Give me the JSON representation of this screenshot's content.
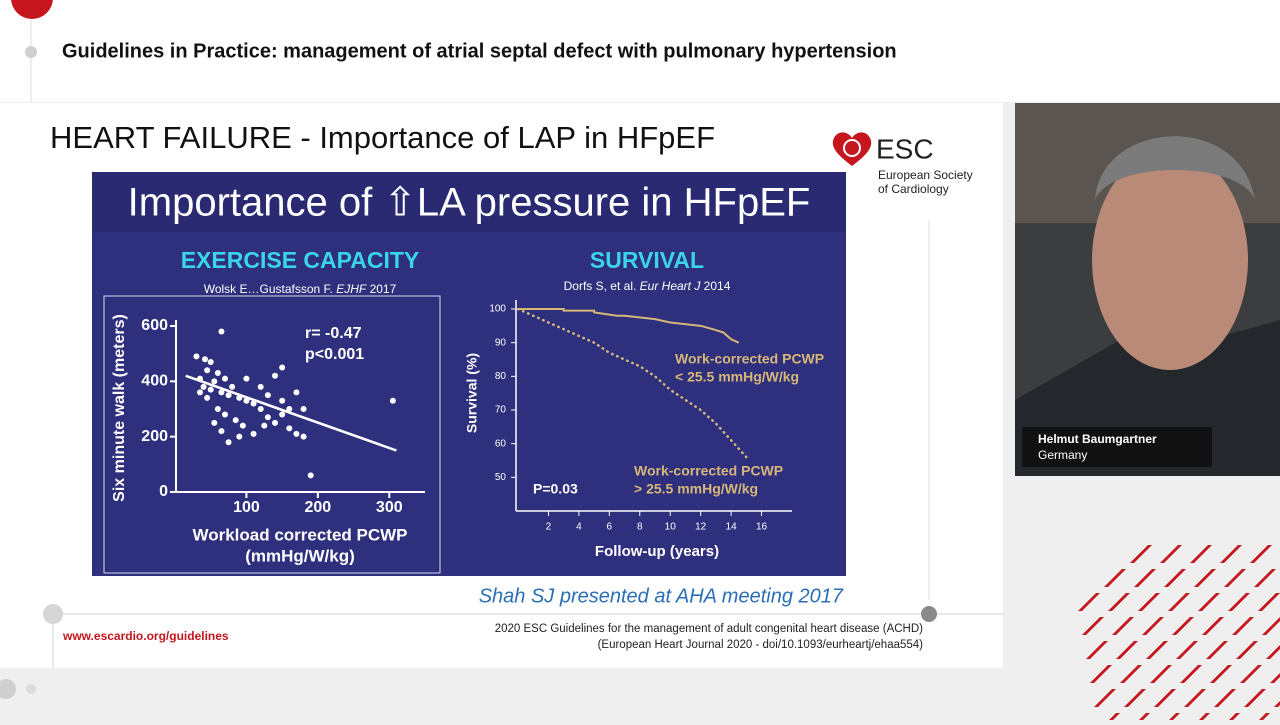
{
  "header": {
    "title": "Guidelines in Practice: management of atrial septal defect with pulmonary hypertension"
  },
  "slide": {
    "title": "HEART FAILURE - Importance of LAP in HFpEF",
    "logo": {
      "name": "ESC",
      "line1": "European Society",
      "line2": "of Cardiology"
    },
    "panel_title": "Importance of ⇧LA pressure in HFpEF",
    "exercise": {
      "heading": "EXERCISE CAPACITY",
      "citation_authors": "Wolsk E…Gustafsson F. ",
      "citation_journal": "EJHF",
      "citation_year": " 2017",
      "ylabel": "Six minute walk (meters)",
      "xlabel_line1": "Workload corrected PCWP",
      "xlabel_line2": "(mmHg/W/kg)",
      "xlim": [
        0,
        350
      ],
      "ylim": [
        0,
        600
      ],
      "xticks": [
        100,
        200,
        300
      ],
      "yticks": [
        0,
        200,
        400,
        600
      ],
      "r": "r= -0.47",
      "p": "p<0.001",
      "points": [
        [
          42,
          480
        ],
        [
          50,
          470
        ],
        [
          30,
          490
        ],
        [
          45,
          440
        ],
        [
          60,
          430
        ],
        [
          35,
          410
        ],
        [
          55,
          400
        ],
        [
          70,
          410
        ],
        [
          80,
          380
        ],
        [
          40,
          380
        ],
        [
          50,
          370
        ],
        [
          65,
          360
        ],
        [
          75,
          350
        ],
        [
          90,
          340
        ],
        [
          100,
          330
        ],
        [
          110,
          320
        ],
        [
          60,
          300
        ],
        [
          70,
          280
        ],
        [
          85,
          260
        ],
        [
          95,
          240
        ],
        [
          120,
          300
        ],
        [
          130,
          270
        ],
        [
          140,
          250
        ],
        [
          150,
          280
        ],
        [
          160,
          230
        ],
        [
          170,
          210
        ],
        [
          180,
          200
        ],
        [
          55,
          250
        ],
        [
          65,
          220
        ],
        [
          75,
          180
        ],
        [
          90,
          200
        ],
        [
          110,
          210
        ],
        [
          130,
          350
        ],
        [
          150,
          330
        ],
        [
          170,
          360
        ],
        [
          120,
          380
        ],
        [
          100,
          410
        ],
        [
          180,
          300
        ],
        [
          190,
          60
        ],
        [
          305,
          330
        ],
        [
          65,
          580
        ],
        [
          150,
          450
        ],
        [
          140,
          420
        ],
        [
          160,
          300
        ],
        [
          125,
          240
        ],
        [
          45,
          340
        ],
        [
          35,
          360
        ]
      ],
      "fit": [
        [
          15,
          420
        ],
        [
          310,
          150
        ]
      ]
    },
    "survival": {
      "heading": "SURVIVAL",
      "citation_authors": "Dorfs S, et al. ",
      "citation_journal": "Eur Heart J",
      "citation_year": " 2014",
      "ylabel": "Survival (%)",
      "xlabel": "Follow-up (years)",
      "xlim": [
        0,
        18
      ],
      "ylim": [
        40,
        100
      ],
      "xticks": [
        2,
        4,
        6,
        8,
        10,
        12,
        14,
        16
      ],
      "yticks": [
        50,
        60,
        70,
        80,
        90,
        100
      ],
      "p": "P=0.03",
      "series": [
        {
          "label1": "Work-corrected PCWP",
          "label2": "< 25.5 mmHg/W/kg",
          "color": "#d6b77a",
          "dotted": false,
          "x": [
            0,
            3,
            3,
            5,
            5,
            6.5,
            7,
            9,
            10,
            12,
            12.8,
            13.5,
            14,
            14.5
          ],
          "values": [
            100,
            100,
            99.5,
            99.5,
            99,
            98,
            98,
            97,
            96,
            95,
            94,
            93,
            91,
            90
          ]
        },
        {
          "label1": "Work-corrected PCWP",
          "label2": "> 25.5 mmHg/W/kg",
          "color": "#d6b77a",
          "dotted": true,
          "x": [
            0,
            1,
            2,
            3,
            4,
            5,
            6,
            7,
            8,
            9,
            10,
            11,
            12,
            13,
            14,
            15
          ],
          "values": [
            100,
            98,
            96,
            94,
            92,
            90,
            87,
            85,
            83,
            80,
            76,
            73,
            70,
            66,
            61,
            56
          ]
        }
      ]
    },
    "credit": "Shah SJ presented at AHA meeting 2017"
  },
  "footer": {
    "url": "www.escardio.org/guidelines",
    "line1": "2020 ESC Guidelines for the management of adult congenital heart disease (ACHD)",
    "line2": "(European Heart Journal 2020 - doi/10.1093/eurheartj/ehaa554)"
  },
  "video": {
    "name": "Helmut Baumgartner",
    "country": "Germany"
  }
}
